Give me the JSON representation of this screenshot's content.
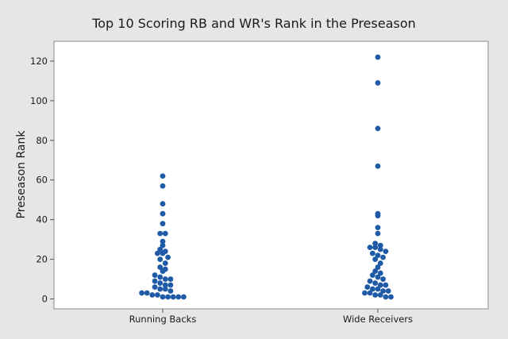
{
  "chart_data": {
    "type": "scatter",
    "subtype": "individual-value-dotplot",
    "title": "Top 10 Scoring RB and WR's Rank in the Preseason",
    "xlabel": "",
    "ylabel": "Preseason Rank",
    "categories": [
      "Running Backs",
      "Wide Receivers"
    ],
    "ylim": [
      -5,
      130
    ],
    "yticks": [
      0,
      20,
      40,
      60,
      80,
      100,
      120
    ],
    "grid": false,
    "marker_color": "#1f5aa6",
    "series": [
      {
        "name": "Running Backs",
        "values": [
          62,
          57,
          48,
          43,
          38,
          33,
          33,
          29,
          27,
          25,
          24,
          23,
          23,
          21,
          20,
          18,
          16,
          15,
          14,
          12,
          11,
          10,
          10,
          9,
          8,
          7,
          7,
          6,
          5,
          5,
          4,
          3,
          3,
          2,
          2,
          1,
          1,
          1,
          1,
          1
        ]
      },
      {
        "name": "Wide Receivers",
        "values": [
          122,
          109,
          86,
          67,
          43,
          42,
          36,
          33,
          28,
          27,
          26,
          26,
          25,
          24,
          23,
          22,
          21,
          20,
          18,
          16,
          14,
          13,
          12,
          11,
          10,
          9,
          8,
          7,
          7,
          6,
          5,
          5,
          4,
          4,
          3,
          3,
          2,
          2,
          1,
          1
        ]
      }
    ]
  }
}
